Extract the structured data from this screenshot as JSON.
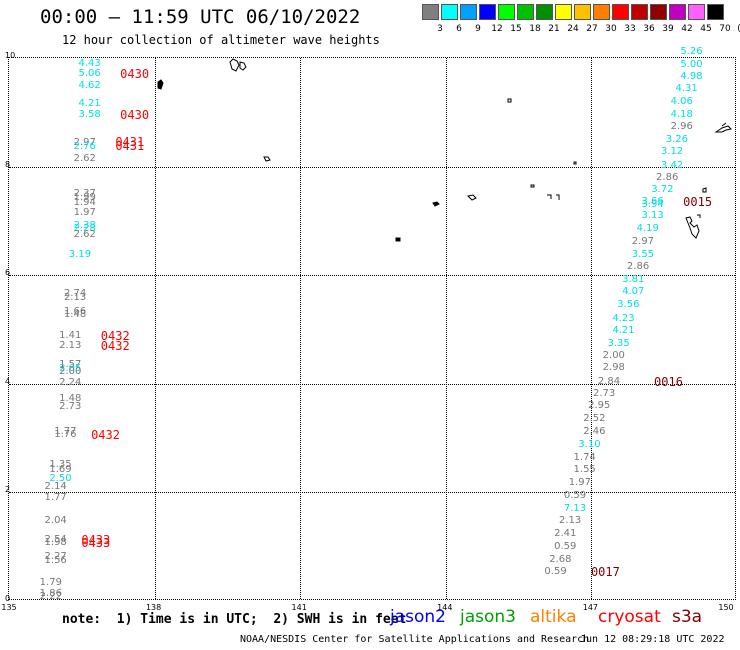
{
  "title": "00:00 – 11:59 UTC 06/10/2022",
  "subtitle": "12 hour collection of altimeter wave heights",
  "colorbar": {
    "labels": [
      "3",
      "6",
      "9",
      "12",
      "15",
      "18",
      "21",
      "24",
      "27",
      "30",
      "33",
      "36",
      "39",
      "42",
      "45",
      "70",
      "(ft)"
    ],
    "colors": [
      "#7f7f7f",
      "#00ffff",
      "#00a0ff",
      "#0000ff",
      "#00ff00",
      "#00c000",
      "#009000",
      "#ffff00",
      "#ffc000",
      "#ff8000",
      "#ff0000",
      "#c00000",
      "#900000",
      "#c000c0",
      "#ff60ff",
      "#000000"
    ]
  },
  "axes": {
    "y_labels": [
      "10",
      "8",
      "6",
      "4",
      "2",
      "0"
    ],
    "x_labels": [
      "135",
      "138",
      "141",
      "144",
      "147",
      "150"
    ]
  },
  "colors": {
    "gray": "#777777",
    "cyan": "#00e0e0",
    "red": "#ff0000",
    "darkred": "#800000"
  },
  "readings": [
    {
      "text": "4.43",
      "c": "cyan",
      "lon": 136.7,
      "lat": 9.88
    },
    {
      "text": "5.06",
      "c": "cyan",
      "lon": 136.7,
      "lat": 9.68
    },
    {
      "text": "4.62",
      "c": "cyan",
      "lon": 136.7,
      "lat": 9.47
    },
    {
      "text": "4.21",
      "c": "cyan",
      "lon": 136.7,
      "lat": 9.14
    },
    {
      "text": "3.58",
      "c": "cyan",
      "lon": 136.7,
      "lat": 8.93
    },
    {
      "text": "2.97",
      "c": "gray",
      "lon": 136.6,
      "lat": 8.41
    },
    {
      "text": "2.76",
      "c": "cyan",
      "lon": 136.6,
      "lat": 8.35
    },
    {
      "text": "2.62",
      "c": "gray",
      "lon": 136.6,
      "lat": 8.12
    },
    {
      "text": "2.37",
      "c": "gray",
      "lon": 136.6,
      "lat": 7.47
    },
    {
      "text": "1.99",
      "c": "gray",
      "lon": 136.6,
      "lat": 7.4
    },
    {
      "text": "1.94",
      "c": "gray",
      "lon": 136.6,
      "lat": 7.32
    },
    {
      "text": "1.97",
      "c": "gray",
      "lon": 136.6,
      "lat": 7.13
    },
    {
      "text": "2.38",
      "c": "cyan",
      "lon": 136.6,
      "lat": 6.89
    },
    {
      "text": "2.28",
      "c": "cyan",
      "lon": 136.6,
      "lat": 6.84
    },
    {
      "text": "2.62",
      "c": "gray",
      "lon": 136.6,
      "lat": 6.72
    },
    {
      "text": "3.19",
      "c": "cyan",
      "lon": 136.5,
      "lat": 6.36
    },
    {
      "text": "2.74",
      "c": "gray",
      "lon": 136.4,
      "lat": 5.63
    },
    {
      "text": "2.13",
      "c": "gray",
      "lon": 136.4,
      "lat": 5.57
    },
    {
      "text": "1.66",
      "c": "gray",
      "lon": 136.4,
      "lat": 5.31
    },
    {
      "text": "1.48",
      "c": "gray",
      "lon": 136.4,
      "lat": 5.24
    },
    {
      "text": "1.41",
      "c": "gray",
      "lon": 136.3,
      "lat": 4.87
    },
    {
      "text": "2.13",
      "c": "gray",
      "lon": 136.3,
      "lat": 4.67
    },
    {
      "text": "1.57",
      "c": "gray",
      "lon": 136.3,
      "lat": 4.32
    },
    {
      "text": "2.05",
      "c": "cyan",
      "lon": 136.3,
      "lat": 4.26
    },
    {
      "text": "2.00",
      "c": "gray",
      "lon": 136.3,
      "lat": 4.2
    },
    {
      "text": "2.24",
      "c": "gray",
      "lon": 136.3,
      "lat": 3.99
    },
    {
      "text": "1.48",
      "c": "gray",
      "lon": 136.3,
      "lat": 3.7
    },
    {
      "text": "2.73",
      "c": "gray",
      "lon": 136.3,
      "lat": 3.55
    },
    {
      "text": "1.77",
      "c": "gray",
      "lon": 136.2,
      "lat": 3.1
    },
    {
      "text": "1.76",
      "c": "gray",
      "lon": 136.2,
      "lat": 3.03
    },
    {
      "text": "1.35",
      "c": "gray",
      "lon": 136.1,
      "lat": 2.48
    },
    {
      "text": "1.69",
      "c": "gray",
      "lon": 136.1,
      "lat": 2.39
    },
    {
      "text": "2.50",
      "c": "cyan",
      "lon": 136.1,
      "lat": 2.22
    },
    {
      "text": "2.14",
      "c": "gray",
      "lon": 136.0,
      "lat": 2.09
    },
    {
      "text": "1.77",
      "c": "gray",
      "lon": 136.0,
      "lat": 1.87
    },
    {
      "text": "2.04",
      "c": "gray",
      "lon": 136.0,
      "lat": 1.45
    },
    {
      "text": "2.54",
      "c": "gray",
      "lon": 136.0,
      "lat": 1.11
    },
    {
      "text": "1.98",
      "c": "gray",
      "lon": 136.0,
      "lat": 1.05
    },
    {
      "text": "2.27",
      "c": "gray",
      "lon": 136.0,
      "lat": 0.8
    },
    {
      "text": "1.56",
      "c": "gray",
      "lon": 136.0,
      "lat": 0.72
    },
    {
      "text": "1.79",
      "c": "gray",
      "lon": 135.9,
      "lat": 0.32
    },
    {
      "text": "1.86",
      "c": "gray",
      "lon": 135.9,
      "lat": 0.11
    },
    {
      "text": "2.22",
      "c": "gray",
      "lon": 135.9,
      "lat": 0.06
    },
    {
      "text": "5.26",
      "c": "cyan",
      "lon": 149.1,
      "lat": 10.1
    },
    {
      "text": "5.00",
      "c": "cyan",
      "lon": 149.1,
      "lat": 9.86
    },
    {
      "text": "4.98",
      "c": "cyan",
      "lon": 149.1,
      "lat": 9.63
    },
    {
      "text": "4.31",
      "c": "cyan",
      "lon": 149.0,
      "lat": 9.41
    },
    {
      "text": "4.06",
      "c": "cyan",
      "lon": 148.9,
      "lat": 9.17
    },
    {
      "text": "4.18",
      "c": "cyan",
      "lon": 148.9,
      "lat": 8.93
    },
    {
      "text": "2.96",
      "c": "gray",
      "lon": 148.9,
      "lat": 8.71
    },
    {
      "text": "3.26",
      "c": "cyan",
      "lon": 148.8,
      "lat": 8.47
    },
    {
      "text": "3.12",
      "c": "cyan",
      "lon": 148.7,
      "lat": 8.25
    },
    {
      "text": "3.42",
      "c": "cyan",
      "lon": 148.7,
      "lat": 8.0
    },
    {
      "text": "2.86",
      "c": "gray",
      "lon": 148.6,
      "lat": 7.78
    },
    {
      "text": "3.72",
      "c": "cyan",
      "lon": 148.5,
      "lat": 7.55
    },
    {
      "text": "3.66",
      "c": "cyan",
      "lon": 148.3,
      "lat": 7.33
    },
    {
      "text": "3.94",
      "c": "cyan",
      "lon": 148.3,
      "lat": 7.27
    },
    {
      "text": "3.13",
      "c": "cyan",
      "lon": 148.3,
      "lat": 7.07
    },
    {
      "text": "4.19",
      "c": "cyan",
      "lon": 148.2,
      "lat": 6.83
    },
    {
      "text": "2.97",
      "c": "gray",
      "lon": 148.1,
      "lat": 6.59
    },
    {
      "text": "3.55",
      "c": "cyan",
      "lon": 148.1,
      "lat": 6.36
    },
    {
      "text": "2.86",
      "c": "gray",
      "lon": 148.0,
      "lat": 6.13
    },
    {
      "text": "3.81",
      "c": "cyan",
      "lon": 147.9,
      "lat": 5.89
    },
    {
      "text": "4.07",
      "c": "cyan",
      "lon": 147.9,
      "lat": 5.67
    },
    {
      "text": "3.56",
      "c": "cyan",
      "lon": 147.8,
      "lat": 5.44
    },
    {
      "text": "4.23",
      "c": "cyan",
      "lon": 147.7,
      "lat": 5.18
    },
    {
      "text": "4.21",
      "c": "cyan",
      "lon": 147.7,
      "lat": 4.95
    },
    {
      "text": "3.35",
      "c": "cyan",
      "lon": 147.6,
      "lat": 4.72
    },
    {
      "text": "2.00",
      "c": "gray",
      "lon": 147.5,
      "lat": 4.5
    },
    {
      "text": "2.98",
      "c": "gray",
      "lon": 147.5,
      "lat": 4.27
    },
    {
      "text": "2.84",
      "c": "gray",
      "lon": 147.4,
      "lat": 4.02
    },
    {
      "text": "2.73",
      "c": "gray",
      "lon": 147.3,
      "lat": 3.8
    },
    {
      "text": "2.95",
      "c": "gray",
      "lon": 147.2,
      "lat": 3.57
    },
    {
      "text": "2.52",
      "c": "gray",
      "lon": 147.1,
      "lat": 3.33
    },
    {
      "text": "2.46",
      "c": "gray",
      "lon": 147.1,
      "lat": 3.09
    },
    {
      "text": "3.10",
      "c": "cyan",
      "lon": 147.0,
      "lat": 2.86
    },
    {
      "text": "1.74",
      "c": "gray",
      "lon": 146.9,
      "lat": 2.62
    },
    {
      "text": "1.55",
      "c": "gray",
      "lon": 146.9,
      "lat": 2.39
    },
    {
      "text": "1.97",
      "c": "gray",
      "lon": 146.8,
      "lat": 2.16
    },
    {
      "text": "0.59",
      "c": "gray",
      "lon": 146.7,
      "lat": 1.92
    },
    {
      "text": "7.13",
      "c": "cyan",
      "lon": 146.7,
      "lat": 1.68
    },
    {
      "text": "2.13",
      "c": "gray",
      "lon": 146.6,
      "lat": 1.45
    },
    {
      "text": "2.41",
      "c": "gray",
      "lon": 146.5,
      "lat": 1.22
    },
    {
      "text": "0.59",
      "c": "gray",
      "lon": 146.5,
      "lat": 0.98
    },
    {
      "text": "2.68",
      "c": "gray",
      "lon": 146.4,
      "lat": 0.74
    },
    {
      "text": "0.59",
      "c": "gray",
      "lon": 146.3,
      "lat": 0.51
    }
  ],
  "time_labels": [
    {
      "text": "0430",
      "c": "red",
      "lon": 137.6,
      "lat": 9.68
    },
    {
      "text": "0430",
      "c": "red",
      "lon": 137.6,
      "lat": 8.93
    },
    {
      "text": "0431",
      "c": "red",
      "lon": 137.5,
      "lat": 8.43
    },
    {
      "text": "0431",
      "c": "red",
      "lon": 137.5,
      "lat": 8.36
    },
    {
      "text": "0432",
      "c": "red",
      "lon": 137.2,
      "lat": 4.87
    },
    {
      "text": "0432",
      "c": "red",
      "lon": 137.2,
      "lat": 4.67
    },
    {
      "text": "0432",
      "c": "red",
      "lon": 137.0,
      "lat": 3.03
    },
    {
      "text": "0433",
      "c": "red",
      "lon": 136.8,
      "lat": 1.11
    },
    {
      "text": "0433",
      "c": "red",
      "lon": 136.8,
      "lat": 1.05
    },
    {
      "text": "0015",
      "c": "darkred",
      "lon": 149.2,
      "lat": 7.33
    },
    {
      "text": "0016",
      "c": "darkred",
      "lon": 148.6,
      "lat": 4.02
    },
    {
      "text": "0017",
      "c": "darkred",
      "lon": 147.3,
      "lat": 0.51
    }
  ],
  "note": "note:  1) Time is in UTC;  2) SWH is in feet",
  "satellites": [
    {
      "name": "jason2",
      "color": "#0000ff"
    },
    {
      "name": "jason3",
      "color": "#00a000"
    },
    {
      "name": "altika",
      "color": "#ff8000"
    },
    {
      "name": "cryosat",
      "color": "#ff0000"
    },
    {
      "name": "s3a",
      "color": "#800000"
    }
  ],
  "footer_left": "NOAA/NESDIS Center for Satellite Applications and Research",
  "footer_right": "Jun 12 08:29:18 UTC 2022"
}
